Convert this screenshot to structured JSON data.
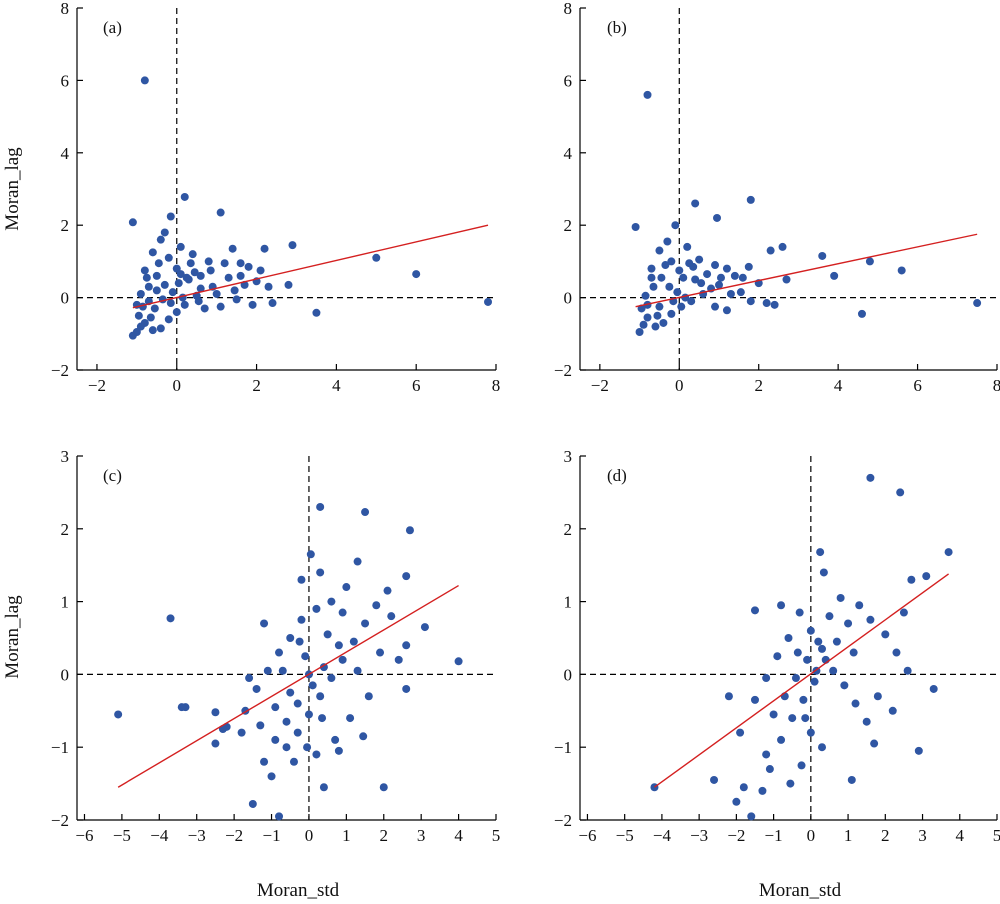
{
  "axis_titles": {
    "x": "Moran_std",
    "y": "Moran_lag"
  },
  "colors": {
    "points": "#2f56a3",
    "fit_line": "#d42020",
    "axes": "#000000"
  },
  "chart_data": [
    {
      "type": "scatter",
      "panel_label": "(a)",
      "xlabel": "",
      "ylabel": "Moran_lag",
      "xlim": [
        -2.5,
        8
      ],
      "ylim": [
        -2,
        8
      ],
      "xticks": [
        -2,
        0,
        2,
        4,
        6,
        8
      ],
      "yticks": [
        -2,
        0,
        2,
        4,
        6,
        8
      ],
      "xtick_labels": [
        "−2",
        "0",
        "2",
        "4",
        "6",
        "8"
      ],
      "ytick_labels": [
        "−2",
        "0",
        "2",
        "4",
        "6",
        "8"
      ],
      "grid": false,
      "reference_lines": {
        "x": 0,
        "y": 0,
        "style": "dashed"
      },
      "fit_line": {
        "x": [
          -1.1,
          7.8
        ],
        "y": [
          -0.28,
          2.0
        ]
      },
      "points": [
        [
          -0.8,
          6.0
        ],
        [
          -1.1,
          2.08
        ],
        [
          0.2,
          2.78
        ],
        [
          -0.15,
          2.24
        ],
        [
          1.1,
          2.35
        ],
        [
          1.4,
          1.35
        ],
        [
          2.2,
          1.35
        ],
        [
          2.9,
          1.45
        ],
        [
          5.0,
          1.1
        ],
        [
          6.0,
          0.65
        ],
        [
          7.8,
          -0.12
        ],
        [
          3.5,
          -0.42
        ],
        [
          -1.1,
          -1.05
        ],
        [
          -1.0,
          -0.95
        ],
        [
          -0.9,
          -0.8
        ],
        [
          -0.8,
          0.75
        ],
        [
          -0.6,
          1.25
        ],
        [
          -0.4,
          1.6
        ],
        [
          -0.3,
          1.8
        ],
        [
          0.1,
          1.4
        ],
        [
          0.4,
          1.2
        ],
        [
          0.8,
          1.0
        ],
        [
          1.2,
          0.95
        ],
        [
          1.6,
          0.6
        ],
        [
          1.8,
          0.85
        ],
        [
          2.0,
          0.45
        ],
        [
          2.4,
          -0.15
        ],
        [
          1.9,
          -0.2
        ],
        [
          1.5,
          -0.05
        ],
        [
          1.0,
          0.1
        ],
        [
          0.6,
          0.25
        ],
        [
          0.3,
          0.5
        ],
        [
          0.0,
          0.8
        ],
        [
          -0.2,
          1.1
        ],
        [
          -0.5,
          0.6
        ],
        [
          -0.7,
          0.3
        ],
        [
          -0.9,
          0.1
        ],
        [
          -1.0,
          -0.2
        ],
        [
          -0.95,
          -0.5
        ],
        [
          -0.8,
          -0.7
        ],
        [
          -0.6,
          -0.9
        ],
        [
          -0.4,
          -0.85
        ],
        [
          -0.2,
          -0.6
        ],
        [
          0.0,
          -0.4
        ],
        [
          0.2,
          -0.2
        ],
        [
          0.5,
          0.05
        ],
        [
          0.9,
          0.3
        ],
        [
          1.3,
          0.55
        ],
        [
          1.7,
          0.35
        ],
        [
          2.1,
          0.75
        ],
        [
          0.7,
          -0.3
        ],
        [
          1.1,
          -0.25
        ],
        [
          0.45,
          0.7
        ],
        [
          -0.3,
          0.35
        ],
        [
          -0.1,
          0.15
        ],
        [
          0.15,
          0.0
        ],
        [
          -0.55,
          -0.3
        ],
        [
          -0.75,
          0.55
        ],
        [
          -0.65,
          -0.55
        ],
        [
          0.35,
          0.95
        ],
        [
          0.25,
          0.55
        ],
        [
          -0.45,
          0.95
        ],
        [
          0.6,
          0.6
        ],
        [
          1.45,
          0.2
        ],
        [
          2.3,
          0.3
        ],
        [
          2.8,
          0.35
        ],
        [
          0.85,
          0.75
        ],
        [
          -0.15,
          -0.15
        ],
        [
          -0.35,
          -0.05
        ],
        [
          0.05,
          0.4
        ],
        [
          1.6,
          0.95
        ],
        [
          0.55,
          -0.1
        ],
        [
          -0.85,
          -0.25
        ],
        [
          -0.7,
          -0.1
        ],
        [
          -0.5,
          0.2
        ],
        [
          0.1,
          0.65
        ]
      ]
    },
    {
      "type": "scatter",
      "panel_label": "(b)",
      "xlabel": "",
      "ylabel": "",
      "xlim": [
        -2.5,
        8
      ],
      "ylim": [
        -2,
        8
      ],
      "xticks": [
        -2,
        0,
        2,
        4,
        6,
        8
      ],
      "yticks": [
        -2,
        0,
        2,
        4,
        6,
        8
      ],
      "xtick_labels": [
        "−2",
        "0",
        "2",
        "4",
        "6",
        "8"
      ],
      "ytick_labels": [
        "−2",
        "0",
        "2",
        "4",
        "6",
        "8"
      ],
      "grid": false,
      "reference_lines": {
        "x": 0,
        "y": 0,
        "style": "dashed"
      },
      "fit_line": {
        "x": [
          -1.1,
          7.5
        ],
        "y": [
          -0.25,
          1.75
        ]
      },
      "points": [
        [
          -0.8,
          5.6
        ],
        [
          -1.1,
          1.95
        ],
        [
          0.4,
          2.6
        ],
        [
          1.8,
          2.7
        ],
        [
          0.95,
          2.2
        ],
        [
          2.6,
          1.4
        ],
        [
          2.3,
          1.3
        ],
        [
          3.6,
          1.15
        ],
        [
          4.8,
          1.0
        ],
        [
          5.6,
          0.75
        ],
        [
          7.5,
          -0.15
        ],
        [
          4.6,
          -0.45
        ],
        [
          3.9,
          0.6
        ],
        [
          -1.0,
          -0.95
        ],
        [
          -0.9,
          -0.75
        ],
        [
          -0.7,
          0.8
        ],
        [
          -0.5,
          1.3
        ],
        [
          -0.3,
          1.55
        ],
        [
          -0.1,
          2.0
        ],
        [
          0.2,
          1.4
        ],
        [
          0.5,
          1.05
        ],
        [
          0.9,
          0.9
        ],
        [
          1.2,
          0.8
        ],
        [
          1.6,
          0.55
        ],
        [
          2.0,
          0.4
        ],
        [
          2.4,
          -0.2
        ],
        [
          2.2,
          -0.15
        ],
        [
          1.8,
          -0.1
        ],
        [
          1.3,
          0.1
        ],
        [
          0.8,
          0.25
        ],
        [
          0.4,
          0.5
        ],
        [
          0.0,
          0.75
        ],
        [
          -0.2,
          1.0
        ],
        [
          -0.45,
          0.55
        ],
        [
          -0.65,
          0.3
        ],
        [
          -0.85,
          0.05
        ],
        [
          -0.95,
          -0.3
        ],
        [
          -0.8,
          -0.55
        ],
        [
          -0.6,
          -0.8
        ],
        [
          -0.4,
          -0.7
        ],
        [
          -0.2,
          -0.45
        ],
        [
          0.05,
          -0.25
        ],
        [
          0.3,
          -0.1
        ],
        [
          0.6,
          0.1
        ],
        [
          1.0,
          0.35
        ],
        [
          1.4,
          0.6
        ],
        [
          1.2,
          -0.35
        ],
        [
          0.9,
          -0.25
        ],
        [
          1.55,
          0.15
        ],
        [
          2.7,
          0.5
        ],
        [
          0.35,
          0.85
        ],
        [
          -0.25,
          0.3
        ],
        [
          -0.05,
          0.15
        ],
        [
          0.15,
          0.0
        ],
        [
          -0.5,
          -0.25
        ],
        [
          -0.7,
          0.55
        ],
        [
          -0.55,
          -0.5
        ],
        [
          0.25,
          0.95
        ],
        [
          0.7,
          0.65
        ],
        [
          1.75,
          0.85
        ],
        [
          -0.35,
          0.9
        ],
        [
          0.55,
          0.4
        ],
        [
          -0.15,
          -0.1
        ],
        [
          -0.8,
          -0.2
        ],
        [
          0.1,
          0.55
        ],
        [
          1.05,
          0.55
        ]
      ]
    },
    {
      "type": "scatter",
      "panel_label": "(c)",
      "xlabel": "Moran_std",
      "ylabel": "Moran_lag",
      "xlim": [
        -6.2,
        5
      ],
      "ylim": [
        -2,
        3
      ],
      "xticks": [
        -6,
        -5,
        -4,
        -3,
        -2,
        -1,
        0,
        1,
        2,
        3,
        4,
        5
      ],
      "yticks": [
        -2,
        -1,
        0,
        1,
        2,
        3
      ],
      "xtick_labels": [
        "−6",
        "−5",
        "−4",
        "−3",
        "−2",
        "−1",
        "0",
        "1",
        "2",
        "3",
        "4",
        "5"
      ],
      "ytick_labels": [
        "−2",
        "−1",
        "0",
        "1",
        "2",
        "3"
      ],
      "grid": false,
      "reference_lines": {
        "x": 0,
        "y": 0,
        "style": "dashed"
      },
      "fit_line": {
        "x": [
          -5.1,
          4.0
        ],
        "y": [
          -1.55,
          1.22
        ]
      },
      "points": [
        [
          -5.1,
          -0.55
        ],
        [
          -3.7,
          0.77
        ],
        [
          -3.3,
          -0.45
        ],
        [
          -3.4,
          -0.45
        ],
        [
          -2.5,
          -0.52
        ],
        [
          -2.5,
          -0.95
        ],
        [
          -2.2,
          -0.72
        ],
        [
          -2.3,
          -0.75
        ],
        [
          -1.7,
          -0.5
        ],
        [
          -1.5,
          -1.78
        ],
        [
          -1.8,
          -0.8
        ],
        [
          -0.8,
          -1.95
        ],
        [
          0.3,
          2.3
        ],
        [
          1.5,
          2.23
        ],
        [
          2.7,
          1.98
        ],
        [
          2.6,
          1.35
        ],
        [
          2.1,
          1.15
        ],
        [
          3.1,
          0.65
        ],
        [
          4.0,
          0.18
        ],
        [
          2.6,
          0.4
        ],
        [
          2.6,
          -0.2
        ],
        [
          2.0,
          -1.55
        ],
        [
          0.4,
          -1.55
        ],
        [
          0.8,
          -1.05
        ],
        [
          -1.2,
          -1.2
        ],
        [
          -1.0,
          -1.4
        ],
        [
          -0.6,
          -1.0
        ],
        [
          -0.3,
          -0.8
        ],
        [
          0.0,
          -0.55
        ],
        [
          0.3,
          -0.3
        ],
        [
          0.6,
          -0.05
        ],
        [
          0.9,
          0.2
        ],
        [
          1.2,
          0.45
        ],
        [
          1.5,
          0.7
        ],
        [
          1.8,
          0.95
        ],
        [
          1.0,
          1.2
        ],
        [
          0.6,
          1.0
        ],
        [
          0.2,
          0.9
        ],
        [
          -0.2,
          0.75
        ],
        [
          -0.5,
          0.5
        ],
        [
          -0.8,
          0.3
        ],
        [
          -1.1,
          0.05
        ],
        [
          -1.4,
          -0.2
        ],
        [
          -0.9,
          -0.45
        ],
        [
          -0.6,
          -0.65
        ],
        [
          -0.3,
          -0.4
        ],
        [
          0.1,
          -0.15
        ],
        [
          0.4,
          0.1
        ],
        [
          0.8,
          0.4
        ],
        [
          1.3,
          0.05
        ],
        [
          1.6,
          -0.3
        ],
        [
          1.1,
          -0.6
        ],
        [
          0.7,
          -0.9
        ],
        [
          0.2,
          -1.1
        ],
        [
          -0.4,
          -1.2
        ],
        [
          -1.3,
          -0.7
        ],
        [
          -1.6,
          -0.05
        ],
        [
          -0.7,
          0.05
        ],
        [
          -0.1,
          0.25
        ],
        [
          0.5,
          0.55
        ],
        [
          0.9,
          0.85
        ],
        [
          2.2,
          0.8
        ],
        [
          2.4,
          0.2
        ],
        [
          1.9,
          0.3
        ],
        [
          -0.2,
          1.3
        ],
        [
          0.3,
          1.4
        ],
        [
          0.05,
          1.65
        ],
        [
          1.3,
          1.55
        ],
        [
          -0.9,
          -0.9
        ],
        [
          -0.5,
          -0.25
        ],
        [
          0.0,
          0.0
        ],
        [
          0.35,
          -0.6
        ],
        [
          -1.2,
          0.7
        ],
        [
          -0.05,
          -1.0
        ],
        [
          1.45,
          -0.85
        ],
        [
          -0.25,
          0.45
        ]
      ]
    },
    {
      "type": "scatter",
      "panel_label": "(d)",
      "xlabel": "Moran_std",
      "ylabel": "",
      "xlim": [
        -6.2,
        5
      ],
      "ylim": [
        -2,
        3
      ],
      "xticks": [
        -6,
        -5,
        -4,
        -3,
        -2,
        -1,
        0,
        1,
        2,
        3,
        4,
        5
      ],
      "yticks": [
        -2,
        -1,
        0,
        1,
        2,
        3
      ],
      "xtick_labels": [
        "−6",
        "−5",
        "−4",
        "−3",
        "−2",
        "−1",
        "0",
        "1",
        "2",
        "3",
        "4",
        "5"
      ],
      "ytick_labels": [
        "−2",
        "−1",
        "0",
        "1",
        "2",
        "3"
      ],
      "grid": false,
      "reference_lines": {
        "x": 0,
        "y": 0,
        "style": "dashed"
      },
      "fit_line": {
        "x": [
          -4.2,
          3.7
        ],
        "y": [
          -1.55,
          1.38
        ]
      },
      "points": [
        [
          -4.2,
          -1.55
        ],
        [
          1.6,
          2.7
        ],
        [
          2.4,
          2.5
        ],
        [
          3.7,
          1.68
        ],
        [
          3.1,
          1.35
        ],
        [
          2.7,
          1.3
        ],
        [
          3.3,
          -0.2
        ],
        [
          2.9,
          -1.05
        ],
        [
          1.1,
          -1.45
        ],
        [
          -1.6,
          -1.95
        ],
        [
          -2.0,
          -1.75
        ],
        [
          -2.6,
          -1.45
        ],
        [
          -1.8,
          -1.55
        ],
        [
          -1.3,
          -1.6
        ],
        [
          -1.5,
          0.88
        ],
        [
          -2.2,
          -0.3
        ],
        [
          -1.9,
          -0.8
        ],
        [
          -1.2,
          -1.1
        ],
        [
          -0.8,
          -0.9
        ],
        [
          -0.5,
          -0.6
        ],
        [
          -0.2,
          -0.35
        ],
        [
          0.1,
          -0.1
        ],
        [
          0.4,
          0.2
        ],
        [
          0.7,
          0.45
        ],
        [
          1.0,
          0.7
        ],
        [
          1.3,
          0.95
        ],
        [
          1.6,
          0.75
        ],
        [
          2.0,
          0.55
        ],
        [
          2.3,
          0.3
        ],
        [
          2.6,
          0.05
        ],
        [
          2.2,
          -0.5
        ],
        [
          1.8,
          -0.3
        ],
        [
          1.5,
          -0.65
        ],
        [
          1.2,
          -0.4
        ],
        [
          0.9,
          -0.15
        ],
        [
          0.6,
          0.05
        ],
        [
          0.3,
          0.35
        ],
        [
          0.0,
          0.6
        ],
        [
          -0.3,
          0.85
        ],
        [
          -0.6,
          0.5
        ],
        [
          -0.9,
          0.25
        ],
        [
          -1.2,
          -0.05
        ],
        [
          -1.5,
          -0.35
        ],
        [
          -1.0,
          -0.55
        ],
        [
          -0.7,
          -0.3
        ],
        [
          -0.4,
          -0.05
        ],
        [
          -0.1,
          0.2
        ],
        [
          0.2,
          0.45
        ],
        [
          0.5,
          0.8
        ],
        [
          0.35,
          1.4
        ],
        [
          0.25,
          1.68
        ],
        [
          0.8,
          1.05
        ],
        [
          0.0,
          -0.8
        ],
        [
          0.3,
          -1.0
        ],
        [
          -0.25,
          -1.25
        ],
        [
          -0.55,
          -1.5
        ],
        [
          1.7,
          -0.95
        ],
        [
          -0.8,
          0.95
        ],
        [
          -1.1,
          -1.3
        ],
        [
          -0.35,
          0.3
        ],
        [
          0.15,
          0.05
        ],
        [
          1.15,
          0.3
        ],
        [
          2.5,
          0.85
        ],
        [
          -0.15,
          -0.6
        ]
      ]
    }
  ]
}
